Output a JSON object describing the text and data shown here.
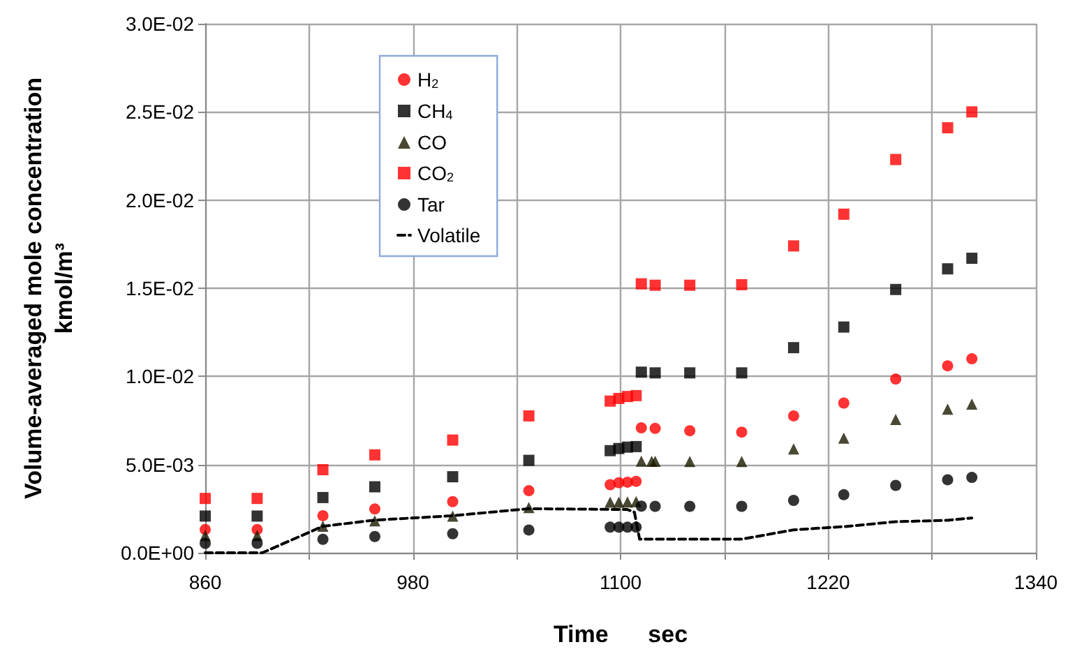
{
  "chart_data": {
    "type": "scatter",
    "xlabel": "Time      sec",
    "ylabel": "Volume-averaged mole concentration\nkmol/m³",
    "xlim": [
      860,
      1340
    ],
    "xticks": [
      860,
      {
        "value": 920,
        "label": null
      },
      980,
      {
        "value": 1040,
        "label": null
      },
      1100,
      {
        "value": 1160,
        "label": null
      },
      1220,
      {
        "value": 1280,
        "label": null
      },
      1340
    ],
    "ylim": [
      0,
      0.03
    ],
    "yticks": [
      {
        "value": 0,
        "label": "0.0E+00"
      },
      {
        "value": 0.005,
        "label": "5.0E-03"
      },
      {
        "value": 0.01,
        "label": "1.0E-02"
      },
      {
        "value": 0.015,
        "label": "1.5E-02"
      },
      {
        "value": 0.02,
        "label": "2.0E-02"
      },
      {
        "value": 0.025,
        "label": "2.5E-02"
      },
      {
        "value": 0.03,
        "label": "3.0E-02"
      }
    ],
    "grid": true,
    "legend": "top left",
    "x": [
      860,
      890,
      928,
      958,
      1003,
      1047,
      1094,
      1099,
      1104,
      1109,
      1112,
      1118,
      1120,
      1140,
      1170,
      1200,
      1229,
      1259,
      1289,
      1303
    ],
    "series": [
      {
        "name": "H$_{2}$",
        "color": "#ff0000",
        "marker": "circle",
        "values": [
          0.00132,
          0.00132,
          0.0021,
          0.00248,
          0.0029,
          0.00352,
          0.00386,
          0.00397,
          0.004,
          0.00405,
          0.00708,
          null,
          0.00705,
          0.00692,
          0.00684,
          0.00776,
          0.00849,
          0.00985,
          0.0106,
          0.011
        ]
      },
      {
        "name": "CH$_{4}$",
        "color": "#000000",
        "marker": "square",
        "values": [
          0.00208,
          0.00208,
          0.00313,
          0.00374,
          0.00431,
          0.00524,
          0.00579,
          0.00591,
          0.00599,
          0.00602,
          0.01024,
          null,
          0.0102,
          0.0102,
          0.0102,
          0.01163,
          0.0128,
          0.01493,
          0.0161,
          0.0167
        ]
      },
      {
        "name": "CO",
        "color": "#1a1a00",
        "marker": "triangle",
        "values": [
          0.00098,
          0.00098,
          0.0015,
          0.00181,
          0.00208,
          0.00256,
          0.00287,
          0.00287,
          0.00288,
          0.0029,
          0.00519,
          0.00518,
          0.00518,
          0.00517,
          0.00517,
          0.00589,
          0.0065,
          0.00756,
          0.00814,
          0.00843
        ]
      },
      {
        "name": "CO$_{2}$",
        "color": "#ff0000",
        "marker": "square",
        "values": [
          0.00308,
          0.00308,
          0.00471,
          0.00555,
          0.00639,
          0.00776,
          0.0086,
          0.00875,
          0.00886,
          0.00891,
          0.01525,
          null,
          0.01517,
          0.01517,
          0.0152,
          0.0174,
          0.0192,
          0.0223,
          0.0241,
          0.025
        ]
      },
      {
        "name": "Tar",
        "color": "#000000",
        "marker": "circle",
        "values": [
          0.00053,
          0.00053,
          0.00076,
          0.00092,
          0.00108,
          0.00129,
          0.00145,
          0.00145,
          0.00145,
          0.00145,
          0.00264,
          null,
          0.00263,
          0.00263,
          0.00263,
          0.00297,
          0.00329,
          0.00382,
          0.00414,
          0.00427
        ]
      },
      {
        "name": "Volatile",
        "type": "line",
        "color": "#000000",
        "marker": "none",
        "line_style": "dashed",
        "x": [
          860,
          893,
          928,
          958,
          1003,
          1047,
          1104,
          1108,
          1111,
          1170,
          1200,
          1229,
          1259,
          1289,
          1303
        ],
        "values": [
          0,
          0,
          0.0015,
          0.00185,
          0.0021,
          0.0025,
          0.00245,
          0.0023,
          0.00077,
          0.00077,
          0.0013,
          0.00148,
          0.00176,
          0.00184,
          0.00197
        ]
      }
    ]
  }
}
